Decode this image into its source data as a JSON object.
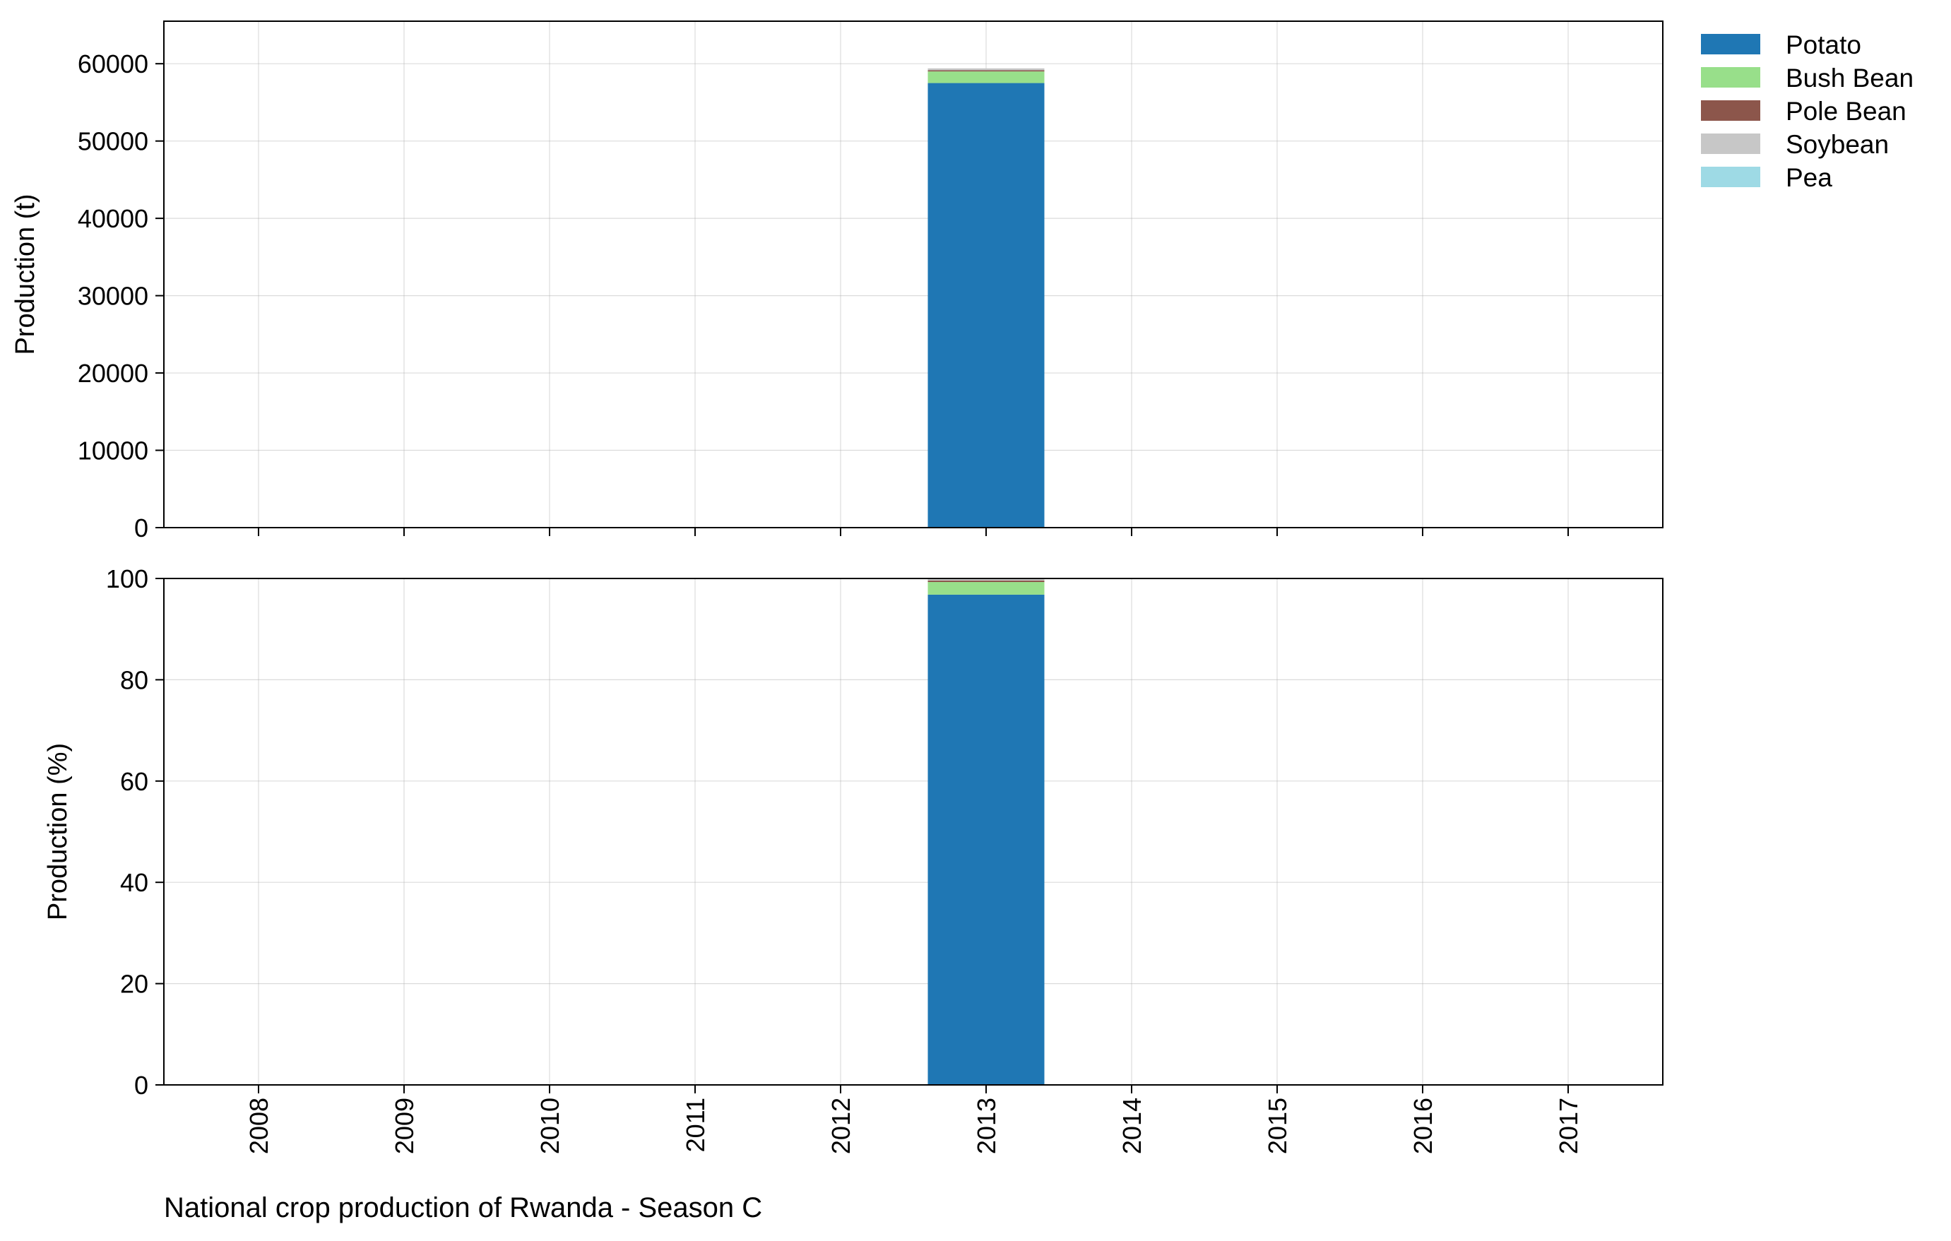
{
  "caption": "National crop production of Rwanda - Season C",
  "colors": {
    "Potato": "#1f77b4",
    "Bush Bean": "#98df8a",
    "Pole Bean": "#8c564b",
    "Soybean": "#c7c7c7",
    "Pea": "#9edae5"
  },
  "chart_data": [
    {
      "type": "bar",
      "stacked": true,
      "title": "",
      "xlabel": "",
      "ylabel": "Production (t)",
      "ylim": [
        0,
        65500
      ],
      "yticks": [
        0,
        10000,
        20000,
        30000,
        40000,
        50000,
        60000
      ],
      "grid": true,
      "categories": [
        "2008",
        "2009",
        "2010",
        "2011",
        "2012",
        "2013",
        "2014",
        "2015",
        "2016",
        "2017"
      ],
      "series": [
        {
          "name": "Potato",
          "values": [
            0,
            0,
            0,
            0,
            0,
            57500,
            0,
            0,
            0,
            0
          ]
        },
        {
          "name": "Bush Bean",
          "values": [
            0,
            0,
            0,
            0,
            0,
            1500,
            0,
            0,
            0,
            0
          ]
        },
        {
          "name": "Pole Bean",
          "values": [
            0,
            0,
            0,
            0,
            0,
            150,
            0,
            0,
            0,
            0
          ]
        },
        {
          "name": "Soybean",
          "values": [
            0,
            0,
            0,
            0,
            0,
            250,
            0,
            0,
            0,
            0
          ]
        },
        {
          "name": "Pea",
          "values": [
            0,
            0,
            0,
            0,
            0,
            0,
            0,
            0,
            0,
            0
          ]
        }
      ]
    },
    {
      "type": "bar",
      "stacked": true,
      "title": "",
      "xlabel": "",
      "ylabel": "Production (%)",
      "ylim": [
        0,
        100
      ],
      "yticks": [
        0,
        20,
        40,
        60,
        80,
        100
      ],
      "grid": true,
      "categories": [
        "2008",
        "2009",
        "2010",
        "2011",
        "2012",
        "2013",
        "2014",
        "2015",
        "2016",
        "2017"
      ],
      "series": [
        {
          "name": "Potato",
          "values": [
            0,
            0,
            0,
            0,
            0,
            96.8,
            0,
            0,
            0,
            0
          ]
        },
        {
          "name": "Bush Bean",
          "values": [
            0,
            0,
            0,
            0,
            0,
            2.5,
            0,
            0,
            0,
            0
          ]
        },
        {
          "name": "Pole Bean",
          "values": [
            0,
            0,
            0,
            0,
            0,
            0.3,
            0,
            0,
            0,
            0
          ]
        },
        {
          "name": "Soybean",
          "values": [
            0,
            0,
            0,
            0,
            0,
            0.4,
            0,
            0,
            0,
            0
          ]
        },
        {
          "name": "Pea",
          "values": [
            0,
            0,
            0,
            0,
            0,
            0,
            0,
            0,
            0,
            0
          ]
        }
      ]
    }
  ],
  "legend": {
    "placement": "outside-top-right",
    "entries": [
      "Potato",
      "Bush Bean",
      "Pole Bean",
      "Soybean",
      "Pea"
    ]
  }
}
